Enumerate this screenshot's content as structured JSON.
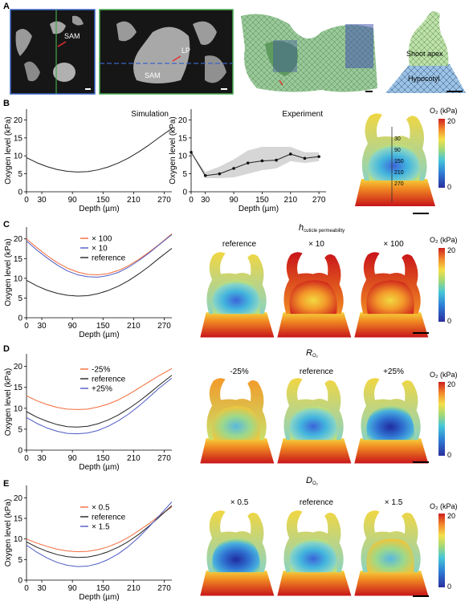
{
  "panels": {
    "A": "A",
    "B": "B",
    "C": "C",
    "D": "D",
    "E": "E"
  },
  "panel_a": {
    "labels": [
      "SAM",
      "SAM",
      "LP",
      "Shoot apex",
      "Hypocotyl"
    ]
  },
  "colorbar": {
    "title": "O₂ (kPa)",
    "max": "20",
    "min": "0"
  },
  "panel_b": {
    "sim_label": "Simulation",
    "exp_label": "Experiment",
    "depth_ticks": [
      "30",
      "90",
      "150",
      "210",
      "270"
    ]
  },
  "panel_c": {
    "heading_main": "h",
    "heading_sub": "cuticle permeability",
    "image_labels": [
      "reference",
      "× 10",
      "× 100"
    ]
  },
  "panel_d": {
    "heading_main": "R",
    "heading_sub": "O₂",
    "image_labels": [
      "-25%",
      "reference",
      "+25%"
    ]
  },
  "panel_e": {
    "heading_main": "D",
    "heading_sub": "O₂",
    "image_labels": [
      "× 0.5",
      "reference",
      "× 1.5"
    ]
  },
  "chart_data": [
    {
      "type": "line",
      "id": "B-sim",
      "xlabel": "Depth (µm)",
      "ylabel": "Oxygen level (kPa)",
      "xticks": [
        0,
        30,
        90,
        150,
        210,
        270
      ],
      "yticks": [
        0,
        5,
        10,
        15,
        20
      ],
      "xlim": [
        0,
        285
      ],
      "ylim": [
        0,
        23
      ],
      "annotation": "Simulation",
      "series": [
        {
          "name": "",
          "color": "#222222",
          "x": [
            0,
            20,
            40,
            60,
            80,
            100,
            120,
            140,
            160,
            180,
            200,
            220,
            240,
            260,
            285
          ],
          "y": [
            9.5,
            8.1,
            7.0,
            6.2,
            5.7,
            5.5,
            5.6,
            6.1,
            6.9,
            8.0,
            9.4,
            11.1,
            13.0,
            15.1,
            17.6
          ]
        }
      ]
    },
    {
      "type": "line",
      "id": "B-exp",
      "xlabel": "Depth (µm)",
      "ylabel": "Oxygen level (kPa)",
      "xticks": [
        0,
        30,
        90,
        150,
        210,
        270
      ],
      "yticks": [
        0,
        5,
        10,
        15,
        20
      ],
      "xlim": [
        0,
        285
      ],
      "ylim": [
        0,
        23
      ],
      "annotation": "Experiment",
      "series": [
        {
          "name": "",
          "color": "#222222",
          "x": [
            0,
            30,
            60,
            90,
            120,
            150,
            180,
            210,
            240,
            270
          ],
          "y": [
            11,
            4.5,
            5.0,
            6.5,
            8.0,
            8.6,
            8.8,
            10.5,
            9.3,
            9.8
          ],
          "band_low": [
            11,
            3.8,
            3.8,
            4.0,
            5.0,
            6.0,
            6.5,
            8.5,
            8.0,
            8.5
          ],
          "band_high": [
            11,
            5.5,
            7.0,
            9.0,
            11.5,
            12.5,
            12.5,
            12.5,
            11.0,
            11.0
          ]
        }
      ]
    },
    {
      "type": "line",
      "id": "C",
      "xlabel": "Depth (µm)",
      "ylabel": "Oxygen level (kPa)",
      "xticks": [
        0,
        30,
        90,
        150,
        210,
        270
      ],
      "yticks": [
        0,
        5,
        10,
        15,
        20
      ],
      "xlim": [
        0,
        285
      ],
      "ylim": [
        0,
        23
      ],
      "series": [
        {
          "name": "× 100",
          "color": "#f26b3a",
          "x": [
            0,
            20,
            40,
            60,
            80,
            100,
            120,
            140,
            160,
            180,
            200,
            220,
            240,
            260,
            285
          ],
          "y": [
            20.0,
            17.8,
            15.8,
            14.0,
            12.6,
            11.6,
            11.0,
            10.9,
            11.2,
            12.0,
            13.2,
            14.8,
            16.6,
            18.6,
            21.3
          ]
        },
        {
          "name": "× 10",
          "color": "#4f5bc4",
          "x": [
            0,
            20,
            40,
            60,
            80,
            100,
            120,
            140,
            160,
            180,
            200,
            220,
            240,
            260,
            285
          ],
          "y": [
            19.5,
            17.2,
            15.2,
            13.4,
            11.9,
            10.9,
            10.4,
            10.3,
            10.7,
            11.5,
            12.8,
            14.5,
            16.4,
            18.5,
            21.1
          ]
        },
        {
          "name": "reference",
          "color": "#222222",
          "x": [
            0,
            20,
            40,
            60,
            80,
            100,
            120,
            140,
            160,
            180,
            200,
            220,
            240,
            260,
            285
          ],
          "y": [
            9.5,
            8.1,
            7.0,
            6.2,
            5.7,
            5.5,
            5.6,
            6.1,
            6.9,
            8.0,
            9.4,
            11.1,
            13.0,
            15.1,
            17.6
          ]
        }
      ]
    },
    {
      "type": "line",
      "id": "D",
      "xlabel": "Depth (µm)",
      "ylabel": "Oxygen level (kPa)",
      "xticks": [
        0,
        30,
        90,
        150,
        210,
        270
      ],
      "yticks": [
        0,
        5,
        10,
        15,
        20
      ],
      "xlim": [
        0,
        285
      ],
      "ylim": [
        0,
        23
      ],
      "series": [
        {
          "name": "-25%",
          "color": "#f26b3a",
          "x": [
            0,
            20,
            40,
            60,
            80,
            100,
            120,
            140,
            160,
            180,
            200,
            220,
            240,
            260,
            285
          ],
          "y": [
            13.0,
            11.8,
            10.9,
            10.2,
            9.8,
            9.7,
            9.8,
            10.3,
            11.0,
            12.0,
            13.3,
            14.8,
            16.3,
            17.8,
            19.5
          ]
        },
        {
          "name": "reference",
          "color": "#222222",
          "x": [
            0,
            20,
            40,
            60,
            80,
            100,
            120,
            140,
            160,
            180,
            200,
            220,
            240,
            260,
            285
          ],
          "y": [
            9.2,
            7.9,
            6.9,
            6.1,
            5.6,
            5.5,
            5.7,
            6.3,
            7.2,
            8.4,
            9.9,
            11.6,
            13.5,
            15.5,
            17.9
          ]
        },
        {
          "name": "+25%",
          "color": "#4f5bc4",
          "x": [
            0,
            20,
            40,
            60,
            80,
            100,
            120,
            140,
            160,
            180,
            200,
            220,
            240,
            260,
            285
          ],
          "y": [
            7.8,
            6.4,
            5.3,
            4.5,
            4.0,
            3.9,
            4.1,
            4.7,
            5.7,
            7.0,
            8.6,
            10.5,
            12.6,
            14.8,
            17.2
          ]
        }
      ]
    },
    {
      "type": "line",
      "id": "E",
      "xlabel": "Depth (µm)",
      "ylabel": "Oxygen level (kPa)",
      "xticks": [
        0,
        30,
        90,
        150,
        210,
        270
      ],
      "yticks": [
        0,
        5,
        10,
        15,
        20
      ],
      "xlim": [
        0,
        285
      ],
      "ylim": [
        0,
        23
      ],
      "series": [
        {
          "name": "× 0.5",
          "color": "#f26b3a",
          "x": [
            0,
            20,
            40,
            60,
            80,
            100,
            120,
            140,
            160,
            180,
            200,
            220,
            240,
            260,
            285
          ],
          "y": [
            10.0,
            9.0,
            8.2,
            7.5,
            7.1,
            6.9,
            7.0,
            7.4,
            8.1,
            9.1,
            10.4,
            12.0,
            13.7,
            15.6,
            17.8
          ]
        },
        {
          "name": "reference",
          "color": "#222222",
          "x": [
            0,
            20,
            40,
            60,
            80,
            100,
            120,
            140,
            160,
            180,
            200,
            220,
            240,
            260,
            285
          ],
          "y": [
            9.3,
            8.0,
            7.0,
            6.2,
            5.7,
            5.5,
            5.6,
            6.1,
            6.9,
            8.0,
            9.4,
            11.1,
            13.1,
            15.3,
            18.1
          ]
        },
        {
          "name": "× 1.5",
          "color": "#4f5bc4",
          "x": [
            0,
            20,
            40,
            60,
            80,
            100,
            120,
            140,
            160,
            180,
            200,
            220,
            240,
            260,
            285
          ],
          "y": [
            8.5,
            6.8,
            5.4,
            4.3,
            3.6,
            3.3,
            3.4,
            4.0,
            5.0,
            6.4,
            8.2,
            10.4,
            12.9,
            15.6,
            19.0
          ]
        }
      ]
    }
  ]
}
